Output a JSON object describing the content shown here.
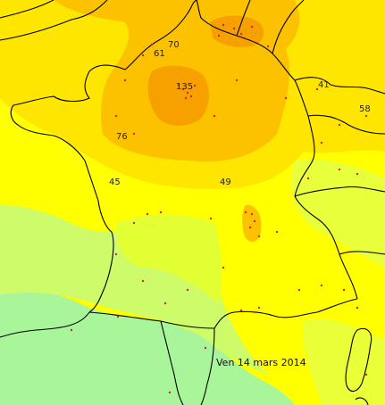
{
  "map": {
    "date_label": "Ven 14 mars 2014",
    "values": [
      {
        "id": "v70",
        "text": "70"
      },
      {
        "id": "v61",
        "text": "61"
      },
      {
        "id": "v135",
        "text": "135"
      },
      {
        "id": "v41",
        "text": "41"
      },
      {
        "id": "v58",
        "text": "58"
      },
      {
        "id": "v76",
        "text": "76"
      },
      {
        "id": "v45",
        "text": "45"
      },
      {
        "id": "v49",
        "text": "49"
      }
    ],
    "colors": {
      "very_high": "#f7a100",
      "high": "#fcc200",
      "moderate": "#ffe600",
      "medium": "#ffff00",
      "low": "#d7ff3e",
      "very_low": "#a8f59a",
      "border": "#000000",
      "station": "#d4233a"
    }
  }
}
